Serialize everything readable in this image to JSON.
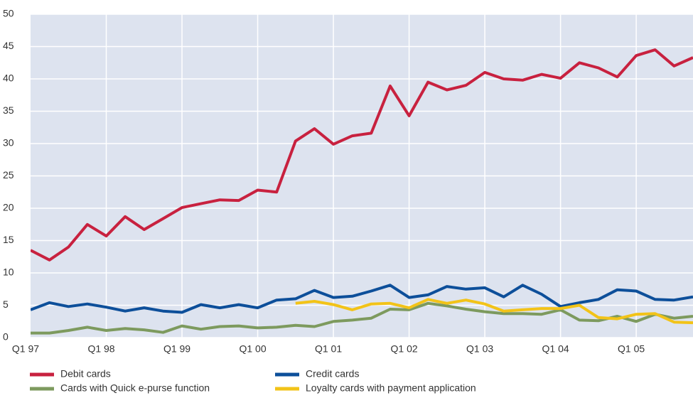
{
  "chart_data": {
    "type": "line",
    "categories": [
      "Q1 97",
      null,
      null,
      null,
      "Q1 98",
      null,
      null,
      null,
      "Q1 99",
      null,
      null,
      null,
      "Q1 00",
      null,
      null,
      null,
      "Q1 01",
      null,
      null,
      null,
      "Q1 02",
      null,
      null,
      null,
      "Q1 03",
      null,
      null,
      null,
      "Q1 04",
      null,
      null,
      null,
      "Q1 05",
      null,
      null,
      null
    ],
    "series": [
      {
        "name": "Debit cards",
        "color": "#c8213f",
        "values": [
          13.5,
          12,
          14,
          17.5,
          15.7,
          18.7,
          16.7,
          18.4,
          20.1,
          20.7,
          21.3,
          21.2,
          22.8,
          22.5,
          30.4,
          32.3,
          29.9,
          31.2,
          31.6,
          38.9,
          34.3,
          39.5,
          38.3,
          39,
          41,
          40,
          39.8,
          40.7,
          40.1,
          42.5,
          41.7,
          40.3,
          43.6,
          44.5,
          42,
          43.3
        ]
      },
      {
        "name": "Credit cards",
        "color": "#0d4f9a",
        "values": [
          4.3,
          5.4,
          4.8,
          5.2,
          4.7,
          4.1,
          4.6,
          4.1,
          3.9,
          5.1,
          4.6,
          5.1,
          4.6,
          5.8,
          6,
          7.3,
          6.2,
          6.4,
          7.2,
          8.1,
          6.2,
          6.6,
          7.9,
          7.5,
          7.7,
          6.3,
          8.1,
          6.7,
          4.8,
          5.4,
          5.9,
          7.4,
          7.2,
          5.9,
          5.8,
          6.3
        ]
      },
      {
        "name": "Cards with Quick e-purse function",
        "color": "#7d9a5e",
        "values": [
          0.7,
          0.7,
          1.1,
          1.6,
          1.1,
          1.4,
          1.2,
          0.8,
          1.8,
          1.3,
          1.7,
          1.8,
          1.5,
          1.6,
          1.9,
          1.7,
          2.5,
          2.7,
          3,
          4.4,
          4.3,
          5.3,
          4.9,
          4.4,
          4,
          3.7,
          3.7,
          3.6,
          4.3,
          2.7,
          2.6,
          3.3,
          2.5,
          3.6,
          3,
          3.3
        ]
      },
      {
        "name": "Loyalty cards with payment application",
        "color": "#f2c318",
        "values": [
          null,
          null,
          null,
          null,
          null,
          null,
          null,
          null,
          null,
          null,
          null,
          null,
          null,
          null,
          5.3,
          5.6,
          5.1,
          4.3,
          5.2,
          5.3,
          4.6,
          5.9,
          5.3,
          5.8,
          5.2,
          4.1,
          4.3,
          4.5,
          4.5,
          5.0,
          3.1,
          2.9,
          3.6,
          3.7,
          2.4,
          2.3
        ]
      }
    ],
    "ylim": [
      0,
      50
    ],
    "yticks": [
      0,
      5,
      10,
      15,
      20,
      25,
      30,
      35,
      40,
      45,
      50
    ],
    "grid": true
  }
}
